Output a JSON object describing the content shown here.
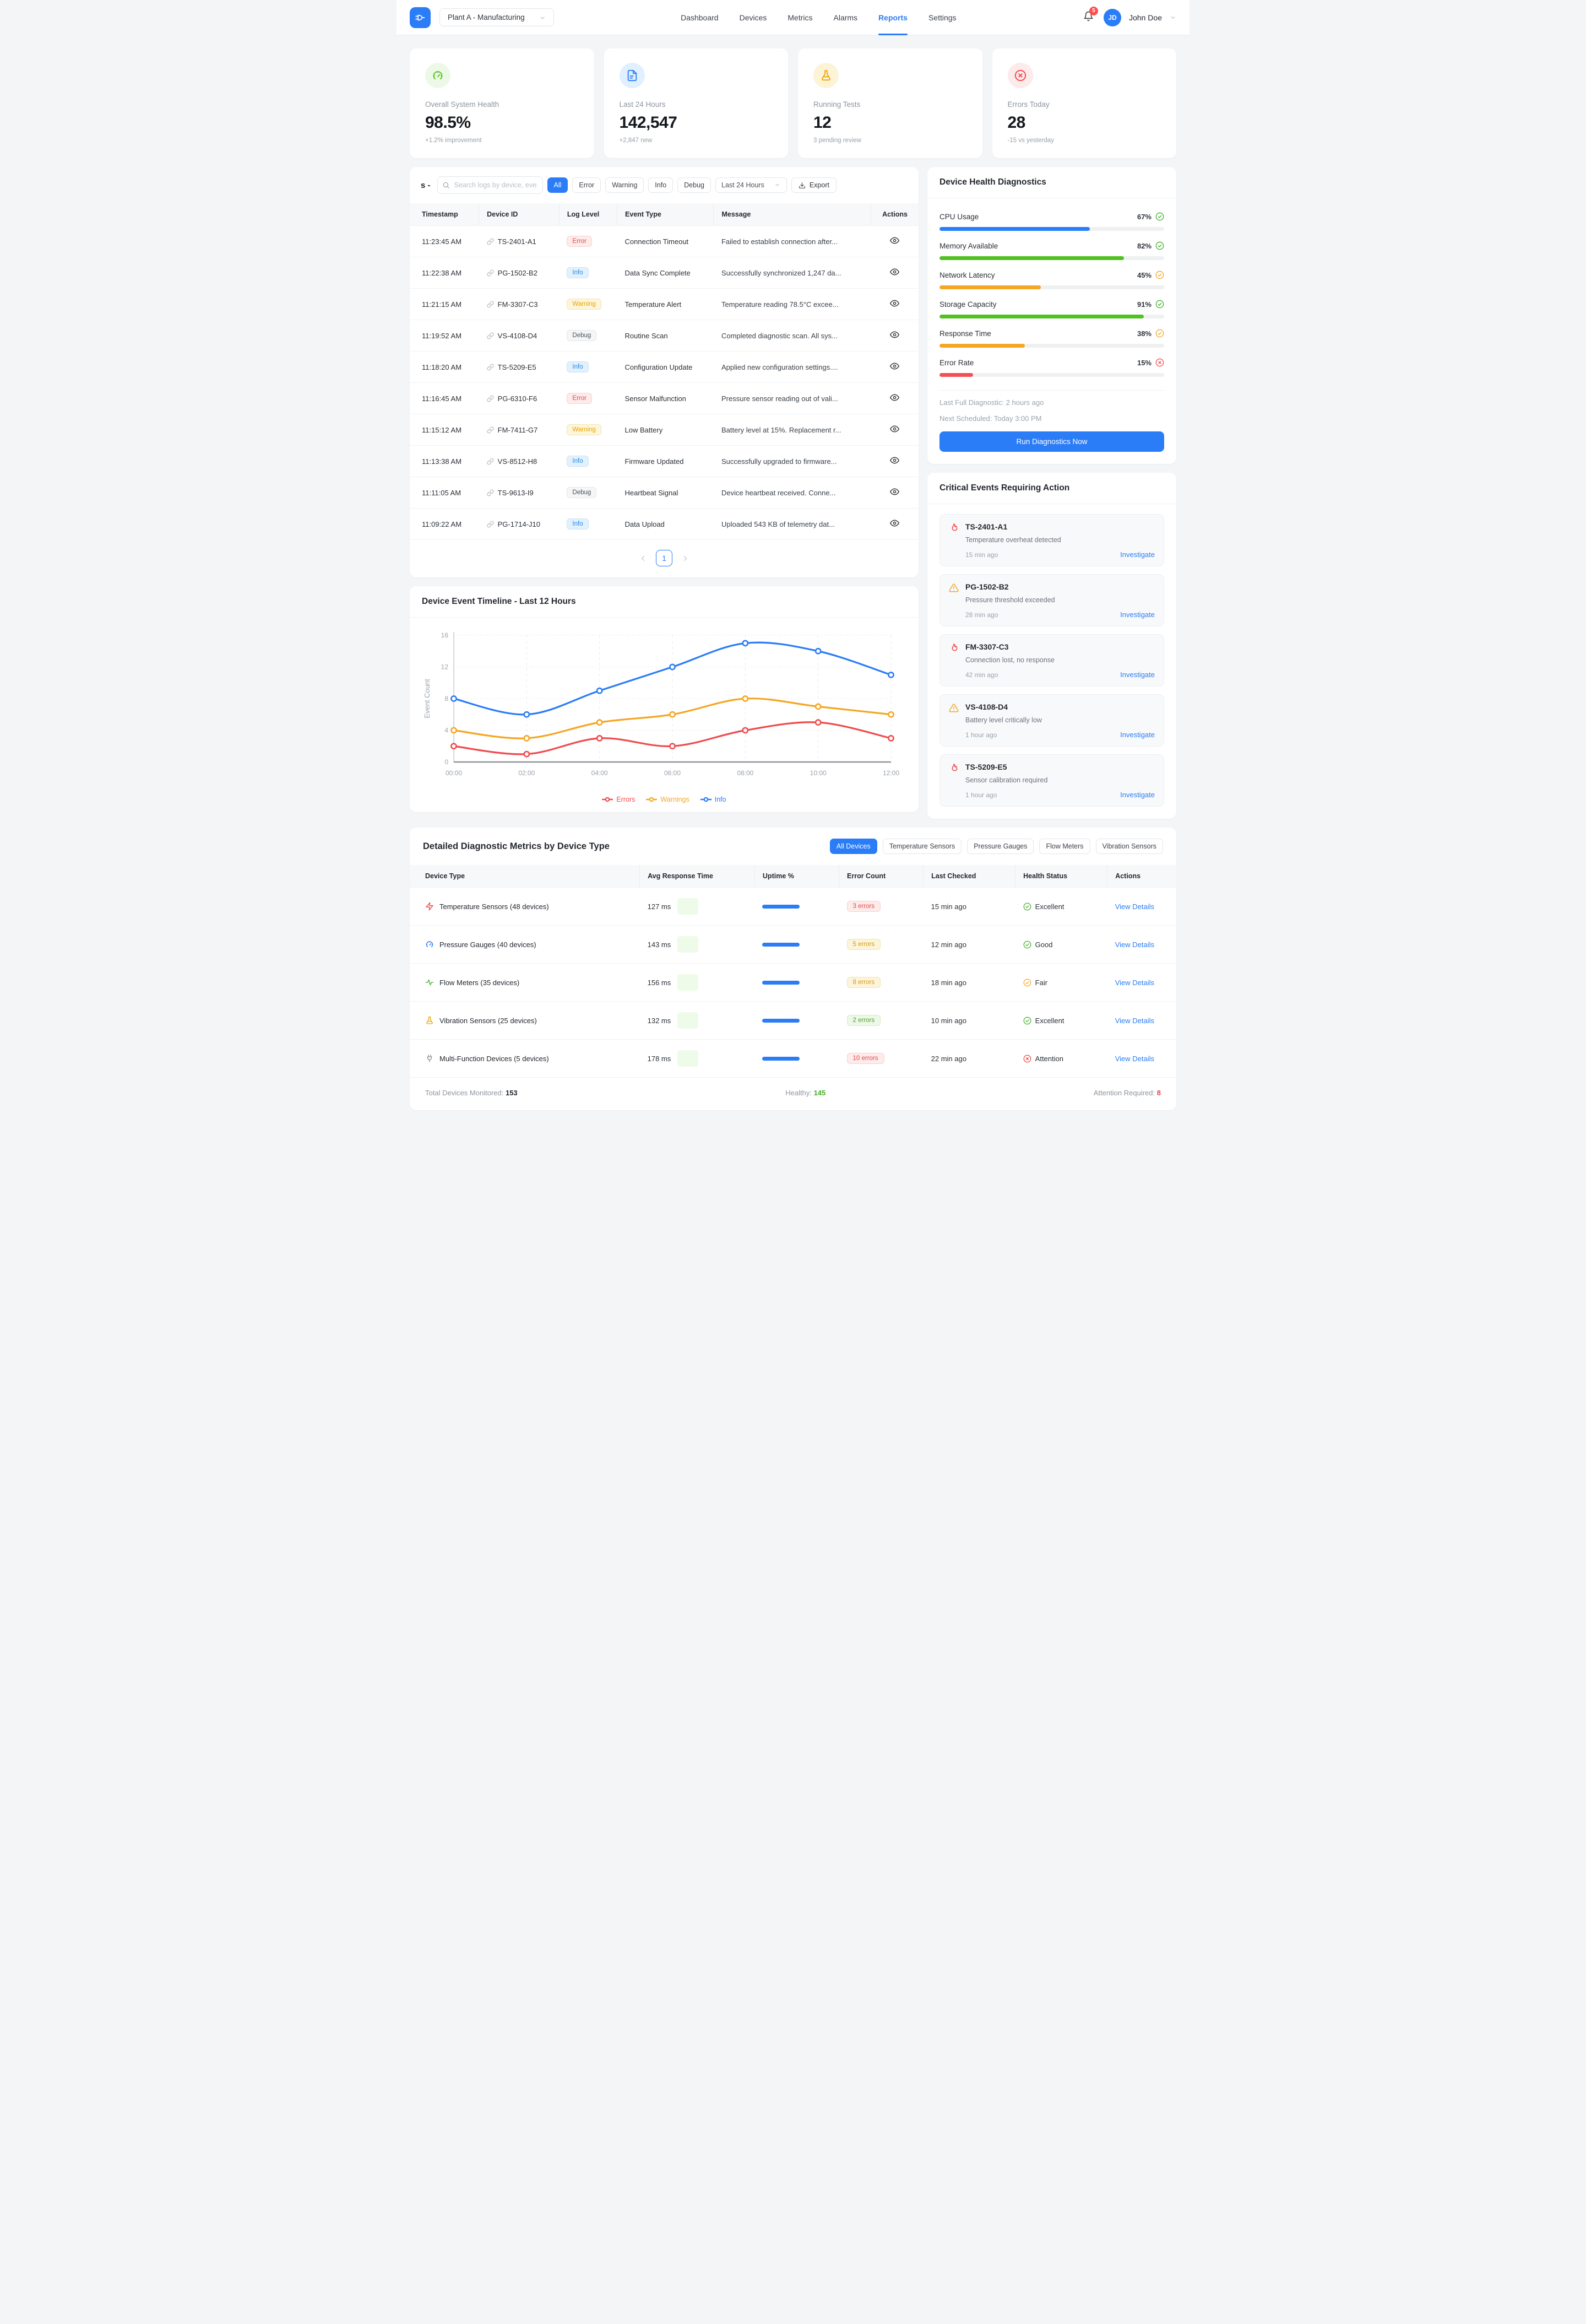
{
  "navbar": {
    "logo_icon": "plug-icon",
    "plant_selector": "Plant A - Manufacturing",
    "items": [
      "Dashboard",
      "Devices",
      "Metrics",
      "Alarms",
      "Reports",
      "Settings"
    ],
    "active_item": "Reports",
    "notifications_badge": "5",
    "user_initials": "JD",
    "user_name": "John Doe"
  },
  "stats": [
    {
      "icon": "gauge",
      "icon_color": "#52c41a",
      "icon_bg": "#edf9e6",
      "label": "Overall System Health",
      "value": "98.5%",
      "sub": "+1.2% improvement"
    },
    {
      "icon": "file",
      "icon_color": "#2a7cf7",
      "icon_bg": "#e0f0fe",
      "label": "Last 24 Hours",
      "value": "142,547",
      "sub": "+2,847 new"
    },
    {
      "icon": "flask",
      "icon_color": "#f0a500",
      "icon_bg": "#fdf3d7",
      "label": "Running Tests",
      "value": "12",
      "sub": "3 pending review"
    },
    {
      "icon": "x-circle",
      "icon_color": "#ef4444",
      "icon_bg": "#fdeaea",
      "label": "Errors Today",
      "value": "28",
      "sub": "-15 vs yesterday"
    }
  ],
  "logs": {
    "title_fragment": "s -",
    "search_placeholder": "Search logs by device, event, mes...",
    "filters": [
      "All",
      "Error",
      "Warning",
      "Info",
      "Debug"
    ],
    "active_filter": "All",
    "time_range": "Last 24 Hours",
    "export_label": "Export",
    "columns": [
      "Timestamp",
      "Device ID",
      "Log Level",
      "Event Type",
      "Message",
      "Actions"
    ],
    "rows": [
      {
        "time": "11:23:45 AM",
        "device": "TS-2401-A1",
        "level": "Error",
        "event": "Connection Timeout",
        "message": "Failed to establish connection after..."
      },
      {
        "time": "11:22:38 AM",
        "device": "PG-1502-B2",
        "level": "Info",
        "event": "Data Sync Complete",
        "message": "Successfully synchronized 1,247 da..."
      },
      {
        "time": "11:21:15 AM",
        "device": "FM-3307-C3",
        "level": "Warning",
        "event": "Temperature Alert",
        "message": "Temperature reading 78.5°C excee..."
      },
      {
        "time": "11:19:52 AM",
        "device": "VS-4108-D4",
        "level": "Debug",
        "event": "Routine Scan",
        "message": "Completed diagnostic scan. All sys..."
      },
      {
        "time": "11:18:20 AM",
        "device": "TS-5209-E5",
        "level": "Info",
        "event": "Configuration Update",
        "message": "Applied new configuration settings...."
      },
      {
        "time": "11:16:45 AM",
        "device": "PG-6310-F6",
        "level": "Error",
        "event": "Sensor Malfunction",
        "message": "Pressure sensor reading out of vali..."
      },
      {
        "time": "11:15:12 AM",
        "device": "FM-7411-G7",
        "level": "Warning",
        "event": "Low Battery",
        "message": "Battery level at 15%. Replacement r..."
      },
      {
        "time": "11:13:38 AM",
        "device": "VS-8512-H8",
        "level": "Info",
        "event": "Firmware Updated",
        "message": "Successfully upgraded to firmware..."
      },
      {
        "time": "11:11:05 AM",
        "device": "TS-9613-I9",
        "level": "Debug",
        "event": "Heartbeat Signal",
        "message": "Device heartbeat received. Conne..."
      },
      {
        "time": "11:09:22 AM",
        "device": "PG-1714-J10",
        "level": "Info",
        "event": "Data Upload",
        "message": "Uploaded 543 KB of telemetry dat..."
      }
    ],
    "pagination": {
      "current": "1"
    }
  },
  "diagnostics": {
    "title": "Device Health Diagnostics",
    "metrics": [
      {
        "label": "CPU Usage",
        "value": "67%",
        "pct": 67,
        "bar_color": "#2a7cf7",
        "status": "ok"
      },
      {
        "label": "Memory Available",
        "value": "82%",
        "pct": 82,
        "bar_color": "#4fc222",
        "status": "ok"
      },
      {
        "label": "Network Latency",
        "value": "45%",
        "pct": 45,
        "bar_color": "#f5a623",
        "status": "warn"
      },
      {
        "label": "Storage Capacity",
        "value": "91%",
        "pct": 91,
        "bar_color": "#4fc222",
        "status": "ok"
      },
      {
        "label": "Response Time",
        "value": "38%",
        "pct": 38,
        "bar_color": "#f5a623",
        "status": "warn"
      },
      {
        "label": "Error Rate",
        "value": "15%",
        "pct": 15,
        "bar_color": "#f25056",
        "status": "bad"
      }
    ],
    "last_full": "Last Full Diagnostic: 2 hours ago",
    "next_scheduled": "Next Scheduled: Today 3:00 PM",
    "button_label": "Run Diagnostics Now"
  },
  "critical": {
    "title": "Critical Events Requiring Action",
    "events": [
      {
        "icon": "flame",
        "device": "TS-2401-A1",
        "desc": "Temperature overheat detected",
        "time": "15 min ago",
        "action": "Investigate"
      },
      {
        "icon": "triangle",
        "device": "PG-1502-B2",
        "desc": "Pressure threshold exceeded",
        "time": "28 min ago",
        "action": "Investigate"
      },
      {
        "icon": "flame",
        "device": "FM-3307-C3",
        "desc": "Connection lost, no response",
        "time": "42 min ago",
        "action": "Investigate"
      },
      {
        "icon": "triangle",
        "device": "VS-4108-D4",
        "desc": "Battery level critically low",
        "time": "1 hour ago",
        "action": "Investigate"
      },
      {
        "icon": "flame",
        "device": "TS-5209-E5",
        "desc": "Sensor calibration required",
        "time": "1 hour ago",
        "action": "Investigate"
      }
    ]
  },
  "chart_data": {
    "type": "line",
    "title": "Device Event Timeline - Last 12 Hours",
    "x": [
      "00:00",
      "02:00",
      "04:00",
      "06:00",
      "08:00",
      "10:00",
      "12:00"
    ],
    "series": [
      {
        "name": "Errors",
        "color": "#f04b4e",
        "values": [
          2,
          1,
          3,
          2,
          4,
          5,
          3
        ]
      },
      {
        "name": "Warnings",
        "color": "#f5a623",
        "values": [
          4,
          3,
          5,
          6,
          8,
          7,
          6
        ]
      },
      {
        "name": "Info",
        "color": "#2a7cf7",
        "values": [
          8,
          6,
          9,
          12,
          15,
          14,
          11
        ]
      }
    ],
    "xlabel": "",
    "ylabel": "Event Count",
    "ylim": [
      0,
      16
    ],
    "yticks": [
      0,
      4,
      8,
      12,
      16
    ],
    "grid": true,
    "legend_position": "bottom"
  },
  "metrics_table": {
    "title": "Detailed Diagnostic Metrics by Device Type",
    "chips": [
      "All Devices",
      "Temperature Sensors",
      "Pressure Gauges",
      "Flow Meters",
      "Vibration Sensors"
    ],
    "active_chip": "All Devices",
    "columns": [
      "Device Type",
      "Avg Response Time",
      "Uptime %",
      "Error Count",
      "Last Checked",
      "Health Status",
      "Actions"
    ],
    "rows": [
      {
        "icon": "zap",
        "icon_color": "#ef4444",
        "name": "Temperature Sensors (48 devices)",
        "response": "127 ms",
        "errors": "3 errors",
        "errors_level": "red",
        "checked": "15 min ago",
        "health": "Excellent",
        "health_level": "ok",
        "action": "View Details"
      },
      {
        "icon": "gauge",
        "icon_color": "#2a7cf7",
        "name": "Pressure Gauges (40 devices)",
        "response": "143 ms",
        "errors": "5 errors",
        "errors_level": "amber",
        "checked": "12 min ago",
        "health": "Good",
        "health_level": "ok",
        "action": "View Details"
      },
      {
        "icon": "flow",
        "icon_color": "#43b02a",
        "name": "Flow Meters (35 devices)",
        "response": "156 ms",
        "errors": "8 errors",
        "errors_level": "amber",
        "checked": "18 min ago",
        "health": "Fair",
        "health_level": "warn",
        "action": "View Details"
      },
      {
        "icon": "flask",
        "icon_color": "#f0a500",
        "name": "Vibration Sensors (25 devices)",
        "response": "132 ms",
        "errors": "2 errors",
        "errors_level": "green",
        "checked": "10 min ago",
        "health": "Excellent",
        "health_level": "ok",
        "action": "View Details"
      },
      {
        "icon": "plug",
        "icon_color": "#8a9099",
        "name": "Multi-Function Devices (5 devices)",
        "response": "178 ms",
        "errors": "10 errors",
        "errors_level": "red",
        "checked": "22 min ago",
        "health": "Attention",
        "health_level": "bad",
        "action": "View Details"
      }
    ],
    "footer": {
      "total_label": "Total Devices Monitored:",
      "total_value": "153",
      "healthy_label": "Healthy:",
      "healthy_value": "145",
      "attention_label": "Attention Required:",
      "attention_value": "8"
    }
  }
}
